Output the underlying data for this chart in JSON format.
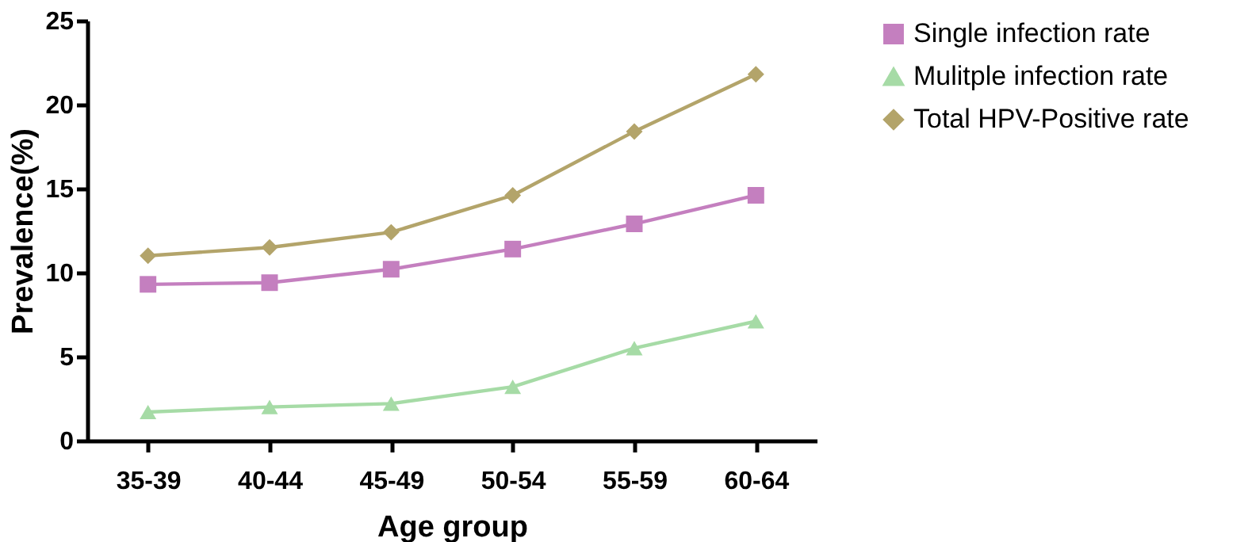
{
  "chart_data": {
    "type": "line",
    "xlabel": "Age group",
    "ylabel": "Prevalence(%)",
    "categories": [
      "35-39",
      "40-44",
      "45-49",
      "50-54",
      "55-59",
      "60-64"
    ],
    "series": [
      {
        "name": "Single infection rate",
        "color": "#c47fbf",
        "marker": "square",
        "values": [
          9.3,
          9.4,
          10.2,
          11.4,
          12.9,
          14.6
        ]
      },
      {
        "name": "Mulitple infection rate",
        "color": "#a6dba6",
        "marker": "triangle",
        "values": [
          1.7,
          2.0,
          2.2,
          3.2,
          5.5,
          7.1
        ]
      },
      {
        "name": "Total HPV-Positive rate",
        "color": "#b3a46a",
        "marker": "diamond",
        "values": [
          11.0,
          11.5,
          12.4,
          14.6,
          18.4,
          21.8
        ]
      }
    ],
    "ylim": [
      0,
      25
    ],
    "yticks": [
      0,
      5,
      10,
      15,
      20,
      25
    ],
    "grid": false,
    "legend": "top right",
    "line_style": "solid"
  }
}
